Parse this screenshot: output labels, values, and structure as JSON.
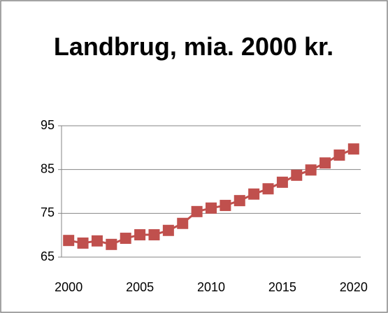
{
  "chart_data": {
    "type": "line",
    "title": "Landbrug, mia. 2000 kr.",
    "x": [
      2000,
      2001,
      2002,
      2003,
      2004,
      2005,
      2006,
      2007,
      2008,
      2009,
      2010,
      2011,
      2012,
      2013,
      2014,
      2015,
      2016,
      2017,
      2018,
      2019,
      2020
    ],
    "series": [
      {
        "name": "Landbrug",
        "color": "#c0504d",
        "values": [
          68.8,
          68.2,
          68.7,
          67.9,
          69.3,
          70.1,
          70.1,
          71.1,
          72.7,
          75.4,
          76.2,
          76.8,
          77.9,
          79.4,
          80.6,
          82.1,
          83.7,
          84.9,
          86.5,
          88.3,
          89.7
        ]
      }
    ],
    "xlim": [
      1999.5,
      2020.5
    ],
    "xticks": [
      2000,
      2005,
      2010,
      2015,
      2020
    ],
    "ylim": [
      65,
      95
    ],
    "yticks": [
      65,
      75,
      85,
      95
    ],
    "grid": true,
    "legend": false
  }
}
